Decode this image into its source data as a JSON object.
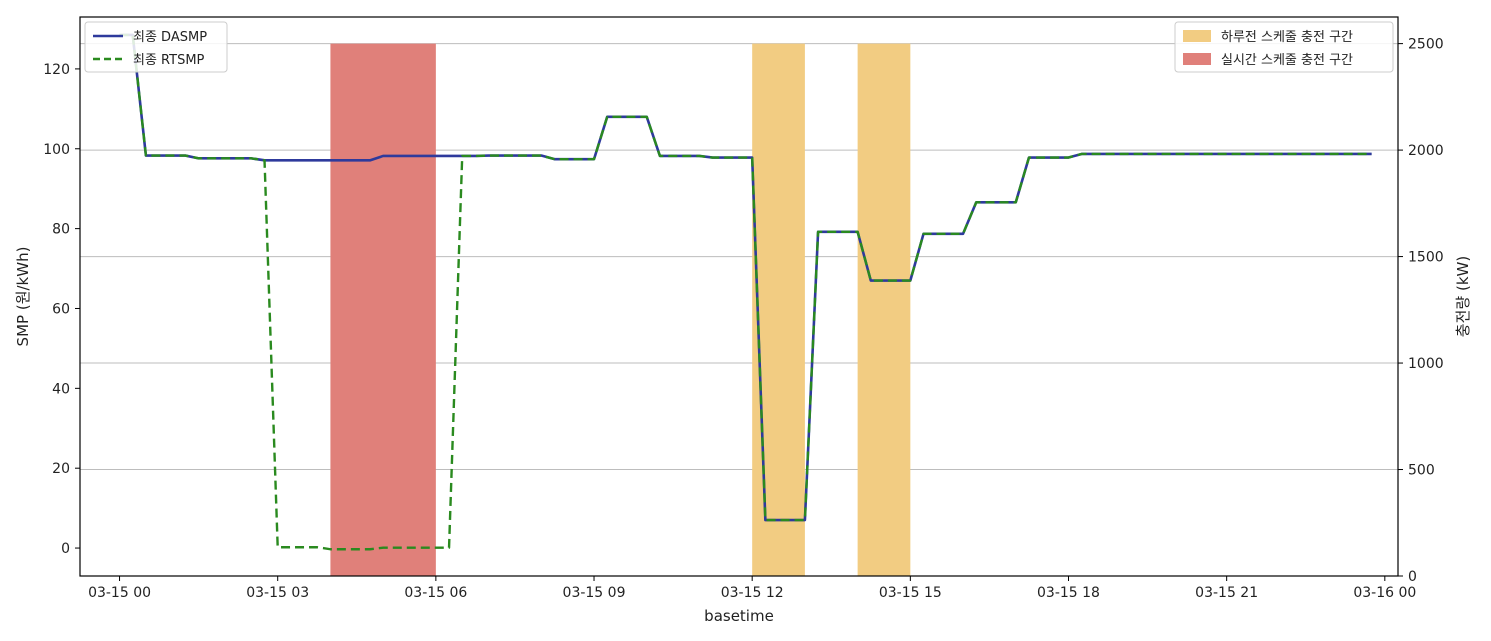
{
  "chart_data": {
    "type": "line",
    "xlabel": "basetime",
    "ylabel_left": "SMP (원/kWh)",
    "ylabel_right": "충전량 (kW)",
    "x_ticks": [
      {
        "label": "03-15 00",
        "hour": 0
      },
      {
        "label": "03-15 03",
        "hour": 3
      },
      {
        "label": "03-15 06",
        "hour": 6
      },
      {
        "label": "03-15 09",
        "hour": 9
      },
      {
        "label": "03-15 12",
        "hour": 12
      },
      {
        "label": "03-15 15",
        "hour": 15
      },
      {
        "label": "03-15 18",
        "hour": 18
      },
      {
        "label": "03-15 21",
        "hour": 21
      },
      {
        "label": "03-16 00",
        "hour": 24
      }
    ],
    "x_range": [
      -0.75,
      24.25
    ],
    "ylim_left": [
      -7,
      133
    ],
    "yticks_left": [
      0,
      20,
      40,
      60,
      80,
      100,
      120
    ],
    "ylim_right": [
      0,
      2625
    ],
    "yticks_right": [
      0,
      500,
      1000,
      1500,
      2000,
      2500
    ],
    "grid_right": true,
    "legend_left": {
      "placement": "top-left",
      "entries": [
        {
          "label": "최종 DASMP",
          "color": "#2e3a9c",
          "style": "solid"
        },
        {
          "label": "최종 RTSMP",
          "color": "#2a8a1f",
          "style": "dashed"
        }
      ]
    },
    "legend_right": {
      "placement": "top-right",
      "entries": [
        {
          "label": "하루전 스케줄 충전 구간",
          "color": "#f2cc82"
        },
        {
          "label": "실시간 스케줄 충전 구간",
          "color": "#e0807a"
        }
      ]
    },
    "charging_bars": [
      {
        "series": "실시간 스케줄 충전 구간",
        "start_hour": 4.0,
        "end_hour": 6.0,
        "value_kw": 2500,
        "color": "#e0807a"
      },
      {
        "series": "하루전 스케줄 충전 구간",
        "start_hour": 12.0,
        "end_hour": 13.0,
        "value_kw": 2500,
        "color": "#f2cc82"
      },
      {
        "series": "하루전 스케줄 충전 구간",
        "start_hour": 14.0,
        "end_hour": 15.0,
        "value_kw": 2500,
        "color": "#f2cc82"
      }
    ],
    "series": [
      {
        "name": "최종 DASMP",
        "color": "#2e3a9c",
        "style": "solid",
        "x": [
          0,
          0.25,
          0.5,
          0.75,
          1,
          1.25,
          1.5,
          1.75,
          2,
          2.25,
          2.5,
          2.75,
          3,
          3.25,
          3.5,
          3.75,
          4,
          4.25,
          4.5,
          4.75,
          5,
          5.25,
          5.5,
          5.75,
          6,
          6.25,
          6.5,
          6.75,
          7,
          7.25,
          7.5,
          7.75,
          8,
          8.25,
          8.5,
          8.75,
          9,
          9.25,
          9.5,
          9.75,
          10,
          10.25,
          10.5,
          10.75,
          11,
          11.25,
          11.5,
          11.75,
          12,
          12.25,
          12.5,
          12.75,
          13,
          13.25,
          13.5,
          13.75,
          14,
          14.25,
          14.5,
          14.75,
          15,
          15.25,
          15.5,
          15.75,
          16,
          16.25,
          16.5,
          16.75,
          17,
          17.25,
          17.5,
          17.75,
          18,
          18.25,
          18.5,
          18.75,
          19,
          19.25,
          19.5,
          19.75,
          20,
          20.25,
          20.5,
          20.75,
          21,
          21.25,
          21.5,
          21.75,
          22,
          22.25,
          22.5,
          22.75,
          23,
          23.25,
          23.5,
          23.75
        ],
        "y": [
          128.5,
          128.5,
          98.3,
          98.3,
          98.3,
          98.3,
          97.6,
          97.6,
          97.6,
          97.6,
          97.6,
          97.1,
          97.1,
          97.1,
          97.1,
          97.1,
          97.1,
          97.1,
          97.1,
          97.1,
          98.2,
          98.2,
          98.2,
          98.2,
          98.2,
          98.2,
          98.2,
          98.2,
          98.3,
          98.3,
          98.3,
          98.3,
          98.3,
          97.4,
          97.4,
          97.4,
          97.4,
          108.0,
          108.0,
          108.0,
          108.0,
          98.2,
          98.2,
          98.2,
          98.2,
          97.8,
          97.8,
          97.8,
          97.8,
          7.0,
          7.0,
          7.0,
          7.0,
          79.2,
          79.2,
          79.2,
          79.2,
          67.0,
          67.0,
          67.0,
          67.0,
          78.7,
          78.7,
          78.7,
          78.7,
          86.6,
          86.6,
          86.6,
          86.6,
          97.8,
          97.8,
          97.8,
          97.8,
          98.7,
          98.7,
          98.7,
          98.7,
          98.7,
          98.7,
          98.7,
          98.7,
          98.7,
          98.7,
          98.7,
          98.7,
          98.7,
          98.7,
          98.7,
          98.7,
          98.7,
          98.7,
          98.7,
          98.7,
          98.7,
          98.7,
          98.7
        ]
      },
      {
        "name": "최종 RTSMP",
        "color": "#2a8a1f",
        "style": "dashed",
        "x": [
          0,
          0.25,
          0.5,
          0.75,
          1,
          1.25,
          1.5,
          1.75,
          2,
          2.25,
          2.5,
          2.75,
          3,
          3.25,
          3.5,
          3.75,
          4,
          4.25,
          4.5,
          4.75,
          5,
          5.25,
          5.5,
          5.75,
          6,
          6.25,
          6.5,
          6.75,
          7,
          7.25,
          7.5,
          7.75,
          8,
          8.25,
          8.5,
          8.75,
          9,
          9.25,
          9.5,
          9.75,
          10,
          10.25,
          10.5,
          10.75,
          11,
          11.25,
          11.5,
          11.75,
          12,
          12.25,
          12.5,
          12.75,
          13,
          13.25,
          13.5,
          13.75,
          14,
          14.25,
          14.5,
          14.75,
          15,
          15.25,
          15.5,
          15.75,
          16,
          16.25,
          16.5,
          16.75,
          17,
          17.25,
          17.5,
          17.75,
          18,
          18.25,
          18.5,
          18.75,
          19,
          19.25,
          19.5,
          19.75,
          20,
          20.25,
          20.5,
          20.75,
          21,
          21.25,
          21.5,
          21.75,
          22,
          22.25,
          22.5,
          22.75,
          23,
          23.25,
          23.5,
          23.75
        ],
        "y": [
          128.5,
          128.5,
          98.3,
          98.3,
          98.3,
          98.3,
          97.6,
          97.6,
          97.6,
          97.6,
          97.6,
          97.1,
          0.2,
          0.2,
          0.2,
          0.2,
          -0.3,
          -0.3,
          -0.3,
          -0.3,
          0.1,
          0.1,
          0.1,
          0.1,
          0.1,
          0.1,
          98.2,
          98.2,
          98.3,
          98.3,
          98.3,
          98.3,
          98.3,
          97.4,
          97.4,
          97.4,
          97.4,
          108.0,
          108.0,
          108.0,
          108.0,
          98.2,
          98.2,
          98.2,
          98.2,
          97.8,
          97.8,
          97.8,
          97.8,
          7.0,
          7.0,
          7.0,
          7.0,
          79.2,
          79.2,
          79.2,
          79.2,
          67.0,
          67.0,
          67.0,
          67.0,
          78.7,
          78.7,
          78.7,
          78.7,
          86.6,
          86.6,
          86.6,
          86.6,
          97.8,
          97.8,
          97.8,
          97.8,
          98.7,
          98.7,
          98.7,
          98.7,
          98.7,
          98.7,
          98.7,
          98.7,
          98.7,
          98.7,
          98.7,
          98.7,
          98.7,
          98.7,
          98.7,
          98.7,
          98.7,
          98.7,
          98.7,
          98.7,
          98.7,
          98.7,
          98.7
        ]
      }
    ]
  }
}
